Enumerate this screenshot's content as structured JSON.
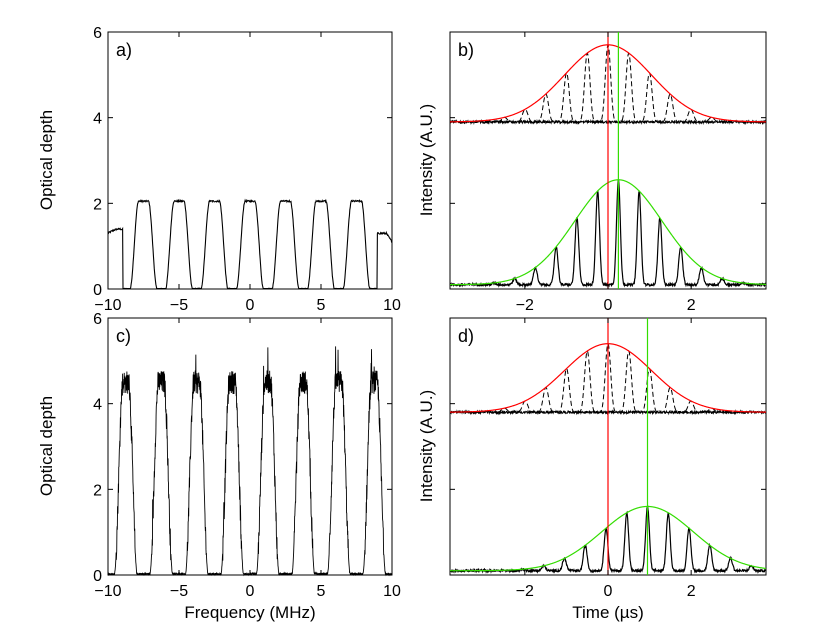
{
  "colors": {
    "red": "#ff0000",
    "green": "#33dd00",
    "black": "#000000"
  },
  "chart_data": [
    {
      "panel": "a",
      "type": "line",
      "label": "a)",
      "xlabel": "",
      "ylabel": "Optical depth",
      "xlim": [
        -10,
        10
      ],
      "ylim": [
        0,
        6
      ],
      "xticks": [
        -10,
        -5,
        0,
        5,
        10
      ],
      "yticks": [
        0,
        2,
        4,
        6
      ],
      "xtick_labels": [
        "−10",
        "−5",
        "0",
        "5",
        "10"
      ],
      "ytick_labels": [
        "0",
        "2",
        "4",
        "6"
      ],
      "comb": {
        "period_mhz": 2.5,
        "peak_od": 2.05,
        "first_center": -7.5,
        "last_center": 7.5,
        "tooth_width": 1.4,
        "edge_od": 1.3
      }
    },
    {
      "panel": "b",
      "type": "line",
      "label": "b)",
      "xlabel": "",
      "ylabel": "Intensity (A.U.)",
      "xlim": [
        -3.8,
        3.8
      ],
      "ylim": [
        0,
        6
      ],
      "xticks": [
        -2,
        0,
        2
      ],
      "yticks": [
        0,
        2,
        4,
        6
      ],
      "xtick_labels": [
        "−2",
        "0",
        "2"
      ],
      "red_marker": 0.0,
      "green_marker": 0.25,
      "upper_baseline": 3.9,
      "upper_peak": 5.7,
      "upper_sigma": 1.05,
      "lower_baseline": 0.1,
      "lower_peak": 2.55,
      "lower_sigma": 1.05,
      "lower_center": 0.25,
      "pulse_period": 0.5
    },
    {
      "panel": "c",
      "type": "line",
      "label": "c)",
      "xlabel": "Frequency (MHz)",
      "ylabel": "Optical depth",
      "xlim": [
        -10,
        10
      ],
      "ylim": [
        0,
        6
      ],
      "xticks": [
        -10,
        -5,
        0,
        5,
        10
      ],
      "yticks": [
        0,
        2,
        4,
        6
      ],
      "xtick_labels": [
        "−10",
        "−5",
        "0",
        "5",
        "10"
      ],
      "ytick_labels": [
        "0",
        "2",
        "4",
        "6"
      ],
      "comb": {
        "period_mhz": 2.5,
        "peak_od": 4.5,
        "first_center": -8.75,
        "last_center": 8.75,
        "tooth_width": 1.1,
        "edge_od": 4.5
      }
    },
    {
      "panel": "d",
      "type": "line",
      "label": "d)",
      "xlabel": "Time (µs)",
      "ylabel": "Intensity (A.U.)",
      "xlim": [
        -3.8,
        3.8
      ],
      "ylim": [
        0,
        6
      ],
      "xticks": [
        -2,
        0,
        2
      ],
      "yticks": [
        0,
        2,
        4,
        6
      ],
      "xtick_labels": [
        "−2",
        "0",
        "2"
      ],
      "red_marker": 0.0,
      "green_marker": 0.95,
      "upper_baseline": 3.8,
      "upper_peak": 5.4,
      "upper_sigma": 1.05,
      "lower_baseline": 0.1,
      "lower_peak": 1.6,
      "lower_sigma": 1.1,
      "lower_center": 0.95,
      "pulse_period": 0.5
    }
  ]
}
